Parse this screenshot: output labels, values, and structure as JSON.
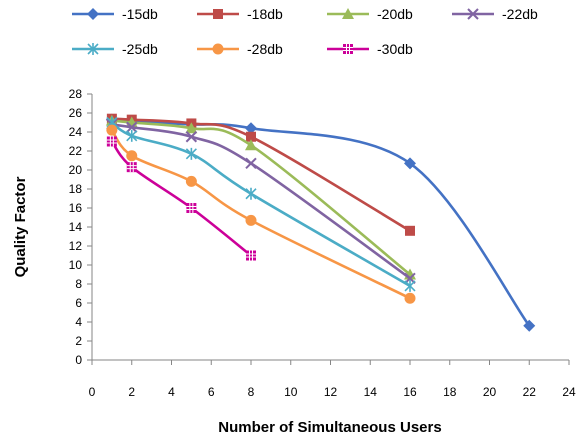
{
  "chart_data": {
    "type": "line",
    "title": "",
    "xlabel": "Number of Simultaneous Users",
    "ylabel": "Quality Factor",
    "xlim": [
      0,
      24
    ],
    "ylim": [
      0,
      28
    ],
    "xticks": [
      0,
      2,
      4,
      6,
      8,
      10,
      12,
      14,
      16,
      18,
      20,
      22,
      24
    ],
    "yticks": [
      0,
      2,
      4,
      6,
      8,
      10,
      12,
      14,
      16,
      18,
      20,
      22,
      24,
      26,
      28
    ],
    "grid": false,
    "legend_position": "top",
    "series": [
      {
        "name": "-15db",
        "color": "#4472C4",
        "marker": "diamond",
        "x": [
          1,
          2,
          5,
          8,
          16,
          22
        ],
        "y": [
          25.3,
          25.1,
          24.8,
          24.4,
          20.7,
          3.6
        ]
      },
      {
        "name": "-18db",
        "color": "#BE4B48",
        "marker": "square",
        "x": [
          1,
          2,
          5,
          8,
          16
        ],
        "y": [
          25.4,
          25.3,
          24.9,
          23.5,
          13.6
        ]
      },
      {
        "name": "-20db",
        "color": "#9BBB59",
        "marker": "triangle",
        "x": [
          1,
          2,
          5,
          8,
          16
        ],
        "y": [
          25.2,
          25.0,
          24.4,
          22.6,
          9.0
        ]
      },
      {
        "name": "-22db",
        "color": "#8064A2",
        "marker": "x",
        "x": [
          1,
          2,
          5,
          8,
          16
        ],
        "y": [
          24.8,
          24.5,
          23.5,
          20.7,
          8.6
        ]
      },
      {
        "name": "-25db",
        "color": "#4BACC6",
        "marker": "asterisk",
        "x": [
          1,
          2,
          5,
          8,
          16
        ],
        "y": [
          25.0,
          23.6,
          21.7,
          17.5,
          7.8
        ]
      },
      {
        "name": "-28db",
        "color": "#F79646",
        "marker": "circle",
        "x": [
          1,
          2,
          5,
          8,
          16
        ],
        "y": [
          24.2,
          21.5,
          18.8,
          14.7,
          6.5
        ]
      },
      {
        "name": "-30db",
        "color": "#CC0099",
        "marker": "hash-square",
        "x": [
          1,
          2,
          5,
          8
        ],
        "y": [
          23.0,
          20.3,
          16.0,
          11.0
        ]
      }
    ]
  }
}
